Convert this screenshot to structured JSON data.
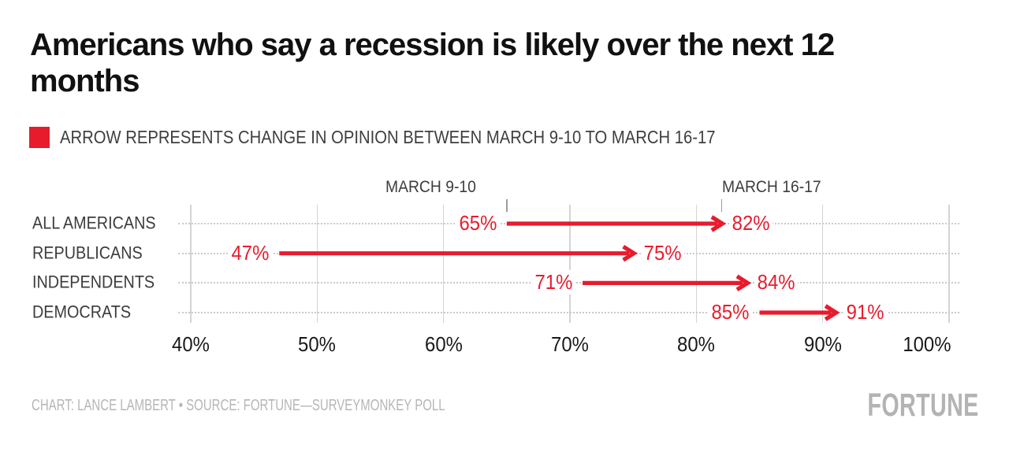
{
  "header": {
    "title": "Americans who say a recession is likely over the next 12 months"
  },
  "legend": {
    "label": "ARROW REPRESENTS CHANGE IN OPINION BETWEEN MARCH 9-10 TO MARCH 16-17",
    "swatch_color": "#e81b2d"
  },
  "colors": {
    "accent_red": "#e81b2d",
    "text_dark": "#3c3c3c",
    "grid_gray": "#d4d4d4",
    "muted_gray": "#b6b6b6"
  },
  "chart_data": {
    "type": "arrow",
    "title": "Americans who say a recession is likely over the next 12 months",
    "legend_note": "ARROW REPRESENTS CHANGE IN OPINION BETWEEN MARCH 9-10 TO MARCH 16-17",
    "columns": [
      {
        "label": "MARCH 9-10"
      },
      {
        "label": "MARCH 16-17"
      }
    ],
    "categories": [
      "ALL AMERICANS",
      "REPUBLICANS",
      "INDEPENDENTS",
      "DEMOCRATS"
    ],
    "series": [
      {
        "category": "ALL AMERICANS",
        "start": 65,
        "end": 82
      },
      {
        "category": "REPUBLICANS",
        "start": 47,
        "end": 75
      },
      {
        "category": "INDEPENDENTS",
        "start": 71,
        "end": 84
      },
      {
        "category": "DEMOCRATS",
        "start": 85,
        "end": 91
      }
    ],
    "axis": {
      "min": 40,
      "max": 100,
      "tick_values": [
        40,
        50,
        60,
        70,
        80,
        90,
        100
      ],
      "tick_labels": [
        "40%",
        "50%",
        "60%",
        "70%",
        "80%",
        "90%",
        "100%"
      ],
      "grid": true
    },
    "value_suffix": "%",
    "arrow_color": "#e81b2d"
  },
  "footer": {
    "credit": "CHART: LANCE LAMBERT • SOURCE: FORTUNE—SURVEYMONKEY POLL",
    "logo": "FORTUNE"
  }
}
